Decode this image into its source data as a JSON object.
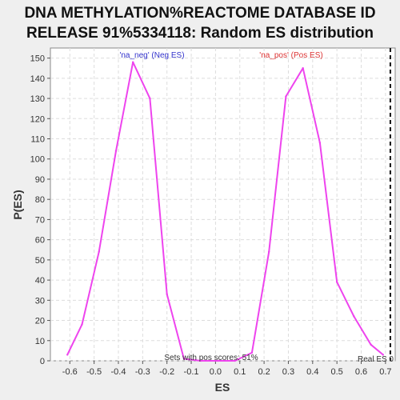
{
  "chart_data": {
    "type": "line",
    "title_line1": "DNA METHYLATION%REACTOME DATABASE ID",
    "title_line2": "RELEASE 91%5334118: Random ES distribution",
    "xlabel": "ES",
    "ylabel": "P(ES)",
    "xlim": [
      -0.68,
      0.74
    ],
    "ylim": [
      0,
      155
    ],
    "x_ticks": [
      -0.6,
      -0.5,
      -0.4,
      -0.3,
      -0.2,
      -0.1,
      0.0,
      0.1,
      0.2,
      0.3,
      0.4,
      0.5,
      0.6,
      0.7
    ],
    "x_tick_labels": [
      "-0.6",
      "-0.5",
      "-0.4",
      "-0.3",
      "-0.2",
      "-0.1",
      "0.0",
      "0.1",
      "0.2",
      "0.3",
      "0.4",
      "0.5",
      "0.6",
      "0.7"
    ],
    "y_ticks": [
      0,
      10,
      20,
      30,
      40,
      50,
      60,
      70,
      80,
      90,
      100,
      110,
      120,
      130,
      140,
      150
    ],
    "y_tick_labels": [
      "0",
      "10",
      "20",
      "30",
      "40",
      "50",
      "60",
      "70",
      "80",
      "90",
      "100",
      "110",
      "120",
      "130",
      "140",
      "150"
    ],
    "grid": true,
    "series": [
      {
        "color": "#ee44ee",
        "x": [
          -0.61,
          -0.55,
          -0.48,
          -0.41,
          -0.34,
          -0.27,
          -0.2,
          -0.13,
          -0.06,
          0.01,
          0.08,
          0.15,
          0.22,
          0.29,
          0.36,
          0.43,
          0.5,
          0.57,
          0.64,
          0.69
        ],
        "y": [
          3,
          18,
          54,
          104,
          148,
          130,
          33,
          1,
          0,
          0,
          0,
          4,
          54,
          131,
          145,
          108,
          39,
          22,
          8,
          3
        ]
      }
    ],
    "annotations": {
      "neg_label": "'na_neg' (Neg ES)",
      "neg_color": "#3333cc",
      "pos_label": "'na_pos' (Pos ES)",
      "pos_color": "#dd3333",
      "sets_text": "Sets with pos scores: 51%",
      "real_es_label": "Real ES 0",
      "real_es_x": 0.72
    }
  }
}
